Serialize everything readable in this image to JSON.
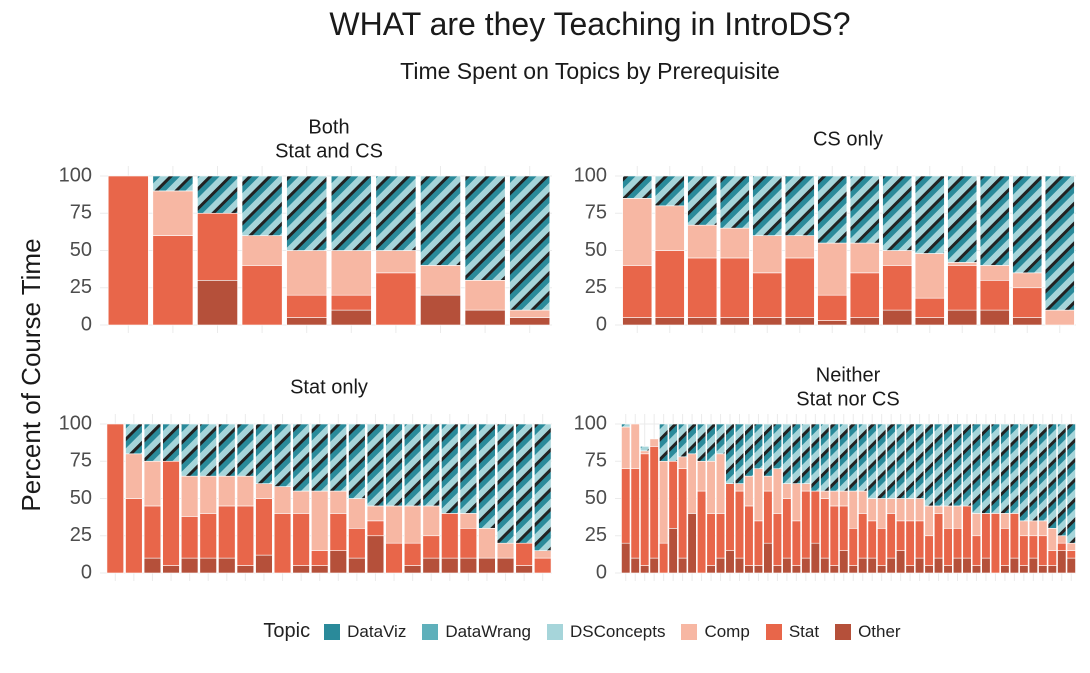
{
  "title": "WHAT are they Teaching in IntroDS?",
  "subtitle": "Time Spent on Topics by Prerequisite",
  "ylabel": "Percent of Course Time",
  "legend_title": "Topic",
  "colors": {
    "DataViz": "#2a8a9a",
    "DataWrang": "#5fb0bb",
    "DSConcepts": "#a6d5da",
    "Comp": "#f7b7a3",
    "Stat": "#e8664a",
    "Other": "#b5503a",
    "hatch": "#222222"
  },
  "chart_data": {
    "type": "bar",
    "stacked": true,
    "ylim": [
      0,
      100
    ],
    "yticks": [
      0,
      25,
      50,
      75,
      100
    ],
    "topics_bottom_to_top": [
      "Other",
      "Stat",
      "Comp",
      "DSConcepts",
      "DataWrang",
      "DataViz"
    ],
    "legend": [
      "DataViz",
      "DataWrang",
      "DSConcepts",
      "Comp",
      "Stat",
      "Other"
    ],
    "panels": [
      {
        "label": "Both\nStat and CS",
        "courses": [
          [
            0,
            100,
            0,
            0
          ],
          [
            0,
            60,
            30,
            10
          ],
          [
            30,
            45,
            0,
            25
          ],
          [
            0,
            40,
            20,
            40
          ],
          [
            5,
            15,
            30,
            50
          ],
          [
            10,
            10,
            30,
            50
          ],
          [
            0,
            35,
            15,
            50
          ],
          [
            20,
            0,
            20,
            60
          ],
          [
            10,
            0,
            20,
            70
          ],
          [
            5,
            0,
            5,
            90
          ]
        ]
      },
      {
        "label": "CS only",
        "courses": [
          [
            5,
            35,
            45,
            15
          ],
          [
            5,
            45,
            30,
            20
          ],
          [
            5,
            40,
            22,
            33
          ],
          [
            5,
            40,
            20,
            35
          ],
          [
            5,
            30,
            25,
            40
          ],
          [
            5,
            40,
            15,
            40
          ],
          [
            3,
            17,
            35,
            45
          ],
          [
            5,
            30,
            20,
            45
          ],
          [
            10,
            30,
            10,
            50
          ],
          [
            5,
            13,
            30,
            52
          ],
          [
            10,
            30,
            2,
            58
          ],
          [
            10,
            20,
            10,
            60
          ],
          [
            5,
            20,
            10,
            65
          ],
          [
            0,
            0,
            10,
            90
          ]
        ]
      },
      {
        "label": "Stat only",
        "courses": [
          [
            0,
            100,
            0,
            0
          ],
          [
            0,
            50,
            30,
            20
          ],
          [
            10,
            35,
            30,
            25
          ],
          [
            5,
            70,
            0,
            25
          ],
          [
            10,
            28,
            27,
            35
          ],
          [
            10,
            30,
            25,
            35
          ],
          [
            10,
            35,
            20,
            35
          ],
          [
            5,
            40,
            20,
            35
          ],
          [
            12,
            38,
            10,
            40
          ],
          [
            0,
            40,
            18,
            42
          ],
          [
            5,
            35,
            15,
            45
          ],
          [
            5,
            10,
            40,
            45
          ],
          [
            15,
            25,
            15,
            45
          ],
          [
            10,
            20,
            20,
            50
          ],
          [
            25,
            10,
            10,
            55
          ],
          [
            0,
            20,
            25,
            55
          ],
          [
            5,
            15,
            25,
            55
          ],
          [
            10,
            15,
            20,
            55
          ],
          [
            10,
            30,
            0,
            60
          ],
          [
            10,
            20,
            10,
            60
          ],
          [
            10,
            0,
            20,
            70
          ],
          [
            10,
            0,
            10,
            80
          ],
          [
            5,
            15,
            0,
            80
          ],
          [
            0,
            10,
            5,
            85
          ]
        ]
      },
      {
        "label": "Neither\nStat nor CS",
        "courses": [
          [
            20,
            50,
            28,
            2
          ],
          [
            10,
            60,
            30,
            0
          ],
          [
            5,
            75,
            2,
            3
          ],
          [
            10,
            75,
            5,
            0
          ],
          [
            0,
            20,
            55,
            25
          ],
          [
            30,
            45,
            0,
            25
          ],
          [
            10,
            60,
            8,
            22
          ],
          [
            40,
            0,
            40,
            20
          ],
          [
            0,
            55,
            20,
            25
          ],
          [
            5,
            35,
            35,
            25
          ],
          [
            10,
            30,
            40,
            20
          ],
          [
            15,
            45,
            0,
            40
          ],
          [
            10,
            45,
            5,
            40
          ],
          [
            5,
            40,
            20,
            35
          ],
          [
            5,
            30,
            35,
            30
          ],
          [
            20,
            35,
            10,
            35
          ],
          [
            5,
            35,
            30,
            30
          ],
          [
            10,
            40,
            10,
            40
          ],
          [
            5,
            30,
            25,
            40
          ],
          [
            10,
            45,
            5,
            40
          ],
          [
            20,
            35,
            0,
            45
          ],
          [
            10,
            40,
            5,
            45
          ],
          [
            5,
            40,
            10,
            45
          ],
          [
            15,
            30,
            10,
            45
          ],
          [
            5,
            25,
            25,
            45
          ],
          [
            10,
            30,
            15,
            45
          ],
          [
            10,
            25,
            15,
            50
          ],
          [
            5,
            25,
            20,
            50
          ],
          [
            10,
            30,
            10,
            50
          ],
          [
            15,
            20,
            15,
            50
          ],
          [
            5,
            30,
            15,
            50
          ],
          [
            10,
            25,
            15,
            50
          ],
          [
            5,
            20,
            20,
            55
          ],
          [
            10,
            30,
            5,
            55
          ],
          [
            5,
            25,
            15,
            55
          ],
          [
            10,
            20,
            15,
            55
          ],
          [
            10,
            35,
            0,
            55
          ],
          [
            5,
            20,
            15,
            60
          ],
          [
            10,
            30,
            0,
            60
          ],
          [
            0,
            40,
            0,
            60
          ],
          [
            5,
            25,
            10,
            60
          ],
          [
            10,
            30,
            0,
            60
          ],
          [
            5,
            20,
            10,
            65
          ],
          [
            10,
            15,
            10,
            65
          ],
          [
            5,
            20,
            10,
            65
          ],
          [
            5,
            10,
            15,
            70
          ],
          [
            15,
            5,
            5,
            75
          ],
          [
            10,
            5,
            5,
            80
          ]
        ]
      }
    ]
  }
}
